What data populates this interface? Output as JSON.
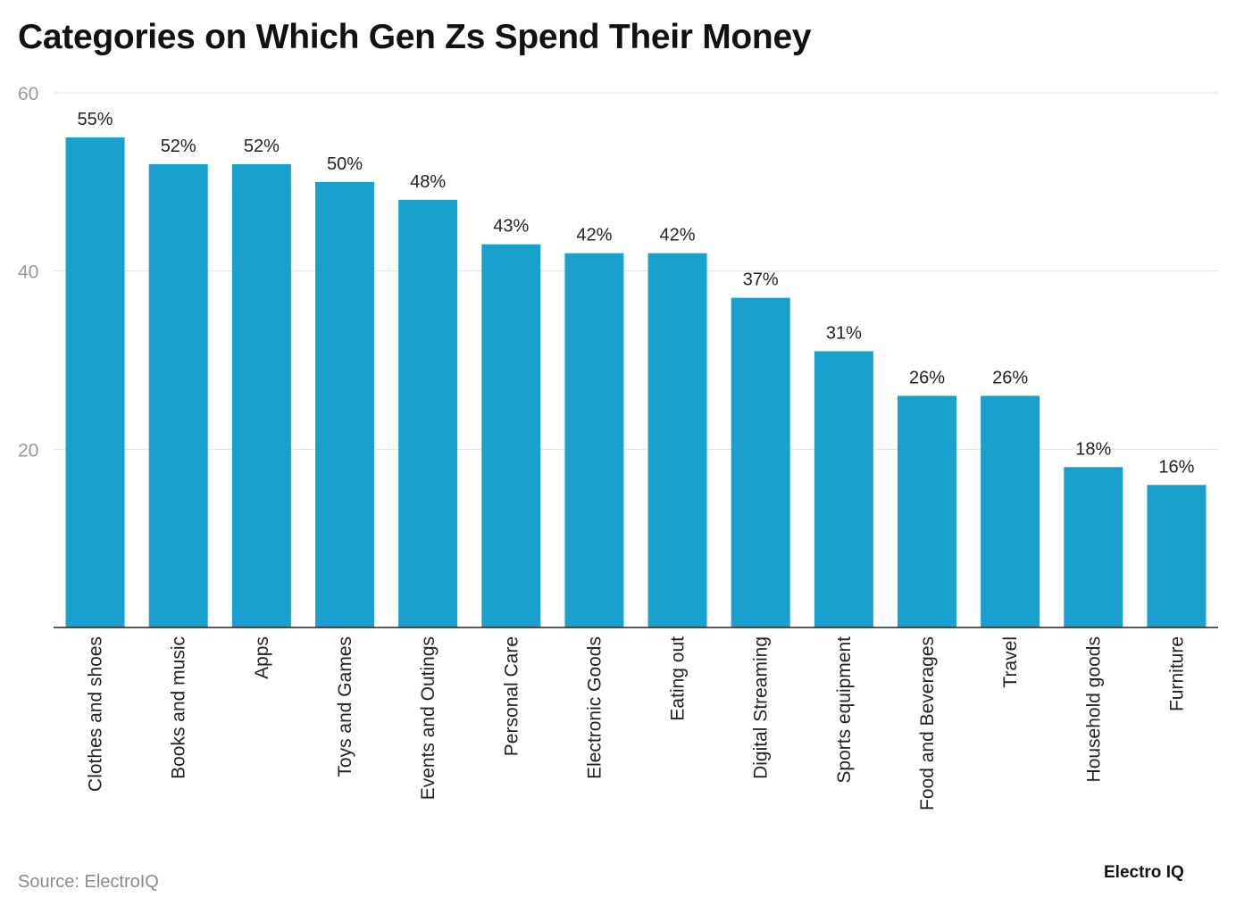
{
  "chart_data": {
    "type": "bar",
    "title": "Categories on Which Gen Zs Spend Their Money",
    "categories": [
      "Clothes and shoes",
      "Books and music",
      "Apps",
      "Toys and Games",
      "Events and Outings",
      "Personal Care",
      "Electronic Goods",
      "Eating out",
      "Digital Streaming",
      "Sports equipment",
      "Food and Beverages",
      "Travel",
      "Household goods",
      "Furniture"
    ],
    "values": [
      55,
      52,
      52,
      50,
      48,
      43,
      42,
      42,
      37,
      31,
      26,
      26,
      18,
      16
    ],
    "data_labels": [
      "55%",
      "52%",
      "52%",
      "50%",
      "48%",
      "43%",
      "42%",
      "42%",
      "37%",
      "31%",
      "26%",
      "26%",
      "18%",
      "16%"
    ],
    "xlabel": "",
    "ylabel": "",
    "ylim": [
      0,
      60
    ],
    "yticks": [
      20,
      40,
      60
    ],
    "grid": true,
    "bar_color": "#1aa0cc"
  },
  "source": "Source: ElectroIQ",
  "logo": "Electro IQ"
}
